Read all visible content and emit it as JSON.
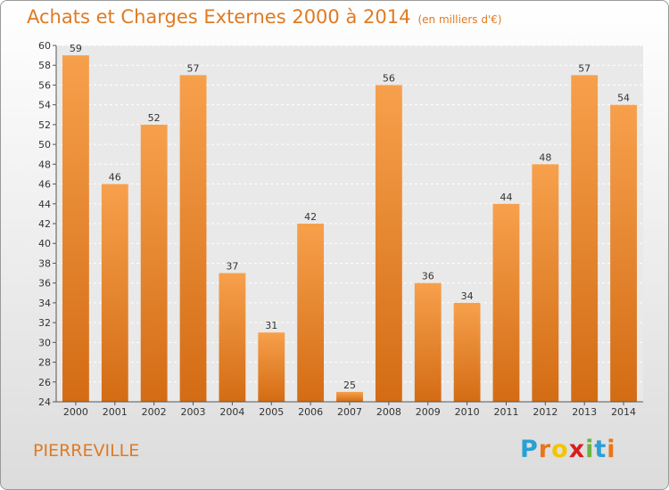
{
  "title": "Achats et Charges Externes 2000 à 2014",
  "subtitle": "(en milliers d'€)",
  "place_name": "PIERREVILLE",
  "logo": {
    "letters": [
      "P",
      "r",
      "o",
      "x",
      "i",
      "t",
      "i"
    ],
    "colors": [
      "#2a9fd6",
      "#e8761c",
      "#f2c500",
      "#d81e1e",
      "#6cb33f",
      "#2a9fd6",
      "#e8761c"
    ]
  },
  "colors": {
    "accent": "#e07a22",
    "bar_light": "#f7a04c",
    "bar_dark": "#d36c14",
    "plot_bg": "#e9e9e9"
  },
  "chart_data": {
    "type": "bar",
    "categories": [
      "2000",
      "2001",
      "2002",
      "2003",
      "2004",
      "2005",
      "2006",
      "2007",
      "2008",
      "2009",
      "2010",
      "2011",
      "2012",
      "2013",
      "2014"
    ],
    "values": [
      59,
      46,
      52,
      57,
      37,
      31,
      42,
      25,
      56,
      36,
      34,
      44,
      48,
      57,
      54
    ],
    "title": "Achats et Charges Externes 2000 à 2014",
    "xlabel": "",
    "ylabel": "",
    "ylim": [
      24,
      60
    ],
    "yticks": [
      24,
      26,
      28,
      30,
      32,
      34,
      36,
      38,
      40,
      42,
      44,
      46,
      48,
      50,
      52,
      54,
      56,
      58,
      60
    ],
    "grid": true,
    "data_labels": true
  }
}
